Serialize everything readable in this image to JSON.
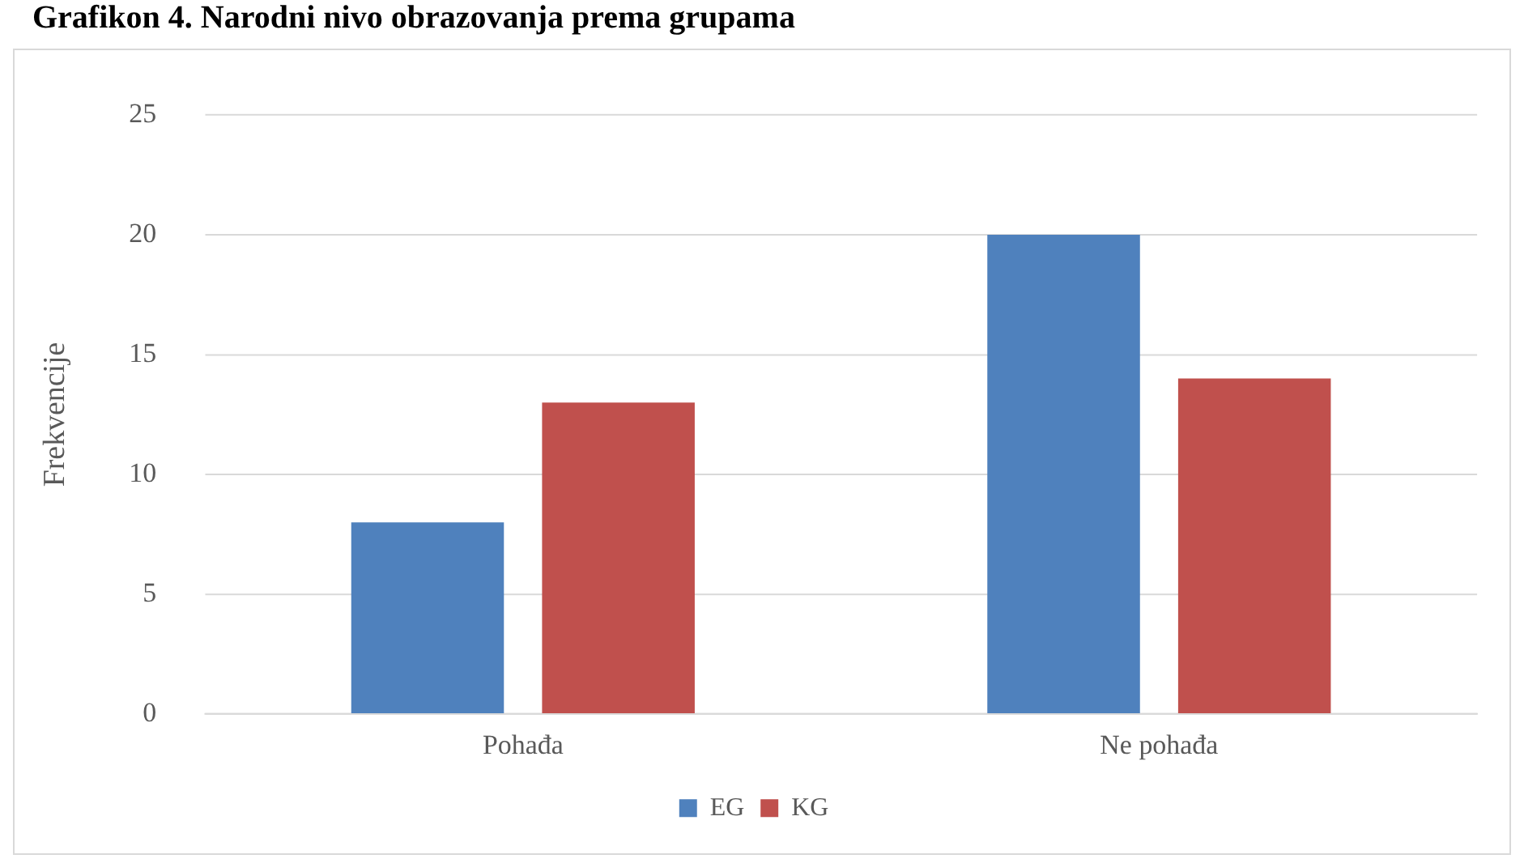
{
  "chart_data": {
    "type": "bar",
    "title": "Grafikon 4. Narodni nivo obrazovanja prema grupama",
    "ylabel": "Frekvencije",
    "categories": [
      "Pohađa",
      "Ne pohađa"
    ],
    "series": [
      {
        "name": "EG",
        "color": "#4f81bd",
        "values": [
          8,
          20
        ]
      },
      {
        "name": "KG",
        "color": "#c0504d",
        "values": [
          13,
          14
        ]
      }
    ],
    "ylim": [
      0,
      25
    ],
    "yticks": [
      0,
      5,
      10,
      15,
      20,
      25
    ],
    "grid": "y",
    "legend": "bottom"
  }
}
